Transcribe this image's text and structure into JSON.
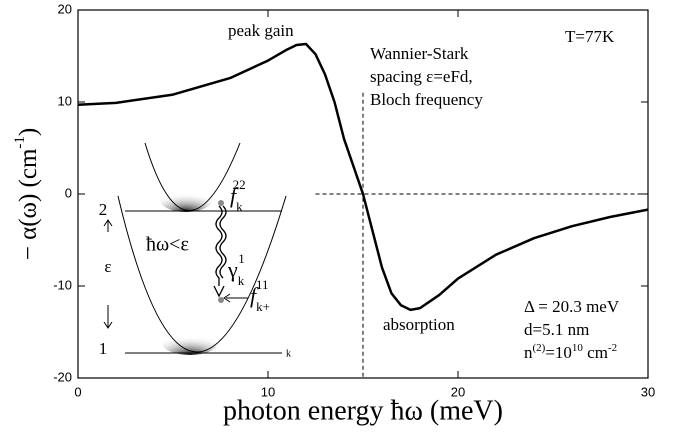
{
  "chart_data": {
    "type": "line",
    "x_label": "photon energy ħω (meV)",
    "y_label": {
      "text": "− α(ω)  (cm",
      "sup": "-1",
      "end": ")"
    },
    "x": [
      0,
      2,
      5,
      8,
      10,
      11,
      11.5,
      12,
      12.5,
      13,
      13.5,
      14,
      14.5,
      15,
      15.5,
      16,
      16.5,
      17,
      17.5,
      18,
      19,
      20,
      22,
      24,
      26,
      28,
      30
    ],
    "values": [
      9.7,
      9.9,
      10.8,
      12.6,
      14.5,
      15.7,
      16.2,
      16.3,
      15.2,
      13,
      10,
      6,
      3,
      0,
      -4,
      -8,
      -10.8,
      -12.1,
      -12.6,
      -12.4,
      -11,
      -9.2,
      -6.6,
      -4.8,
      -3.5,
      -2.5,
      -1.7
    ],
    "color": "#000000",
    "xlim": [
      0,
      30
    ],
    "xticks": [
      0,
      10,
      20,
      30
    ],
    "ylim": [
      -20,
      20
    ],
    "yticks": [
      -20,
      -10,
      0,
      10,
      20
    ],
    "dashed_lines": [
      {
        "x": [
          15,
          15
        ],
        "y": [
          11,
          -20
        ]
      },
      {
        "x": [
          12.5,
          30
        ],
        "y": [
          0,
          0
        ]
      }
    ],
    "annotations": {
      "peak": "peak gain",
      "ws1": "Wannier-Stark",
      "ws2": "spacing ε=eFd,",
      "ws3": "Bloch frequency",
      "temp": "T=77K",
      "absorption": "absorption",
      "delta": "Δ = 20.3 meV",
      "d": "d=5.1 nm",
      "n": {
        "text": "n",
        "sup": "(2)",
        "mid": "=10",
        "sup2": "10",
        "end": " cm",
        "sup3": "-2"
      }
    },
    "inset": {
      "level2": "2",
      "level1": "1",
      "epsilon": "ε",
      "photon": "ħω<ε",
      "k_axis": "k",
      "f22": {
        "base": "f",
        "sub": "k",
        "sup": "22"
      },
      "gamma": {
        "base": "γ",
        "sub": "k",
        "sup": "1"
      },
      "f11": {
        "base": "f",
        "sub": "k+",
        "sup": "11"
      }
    }
  }
}
